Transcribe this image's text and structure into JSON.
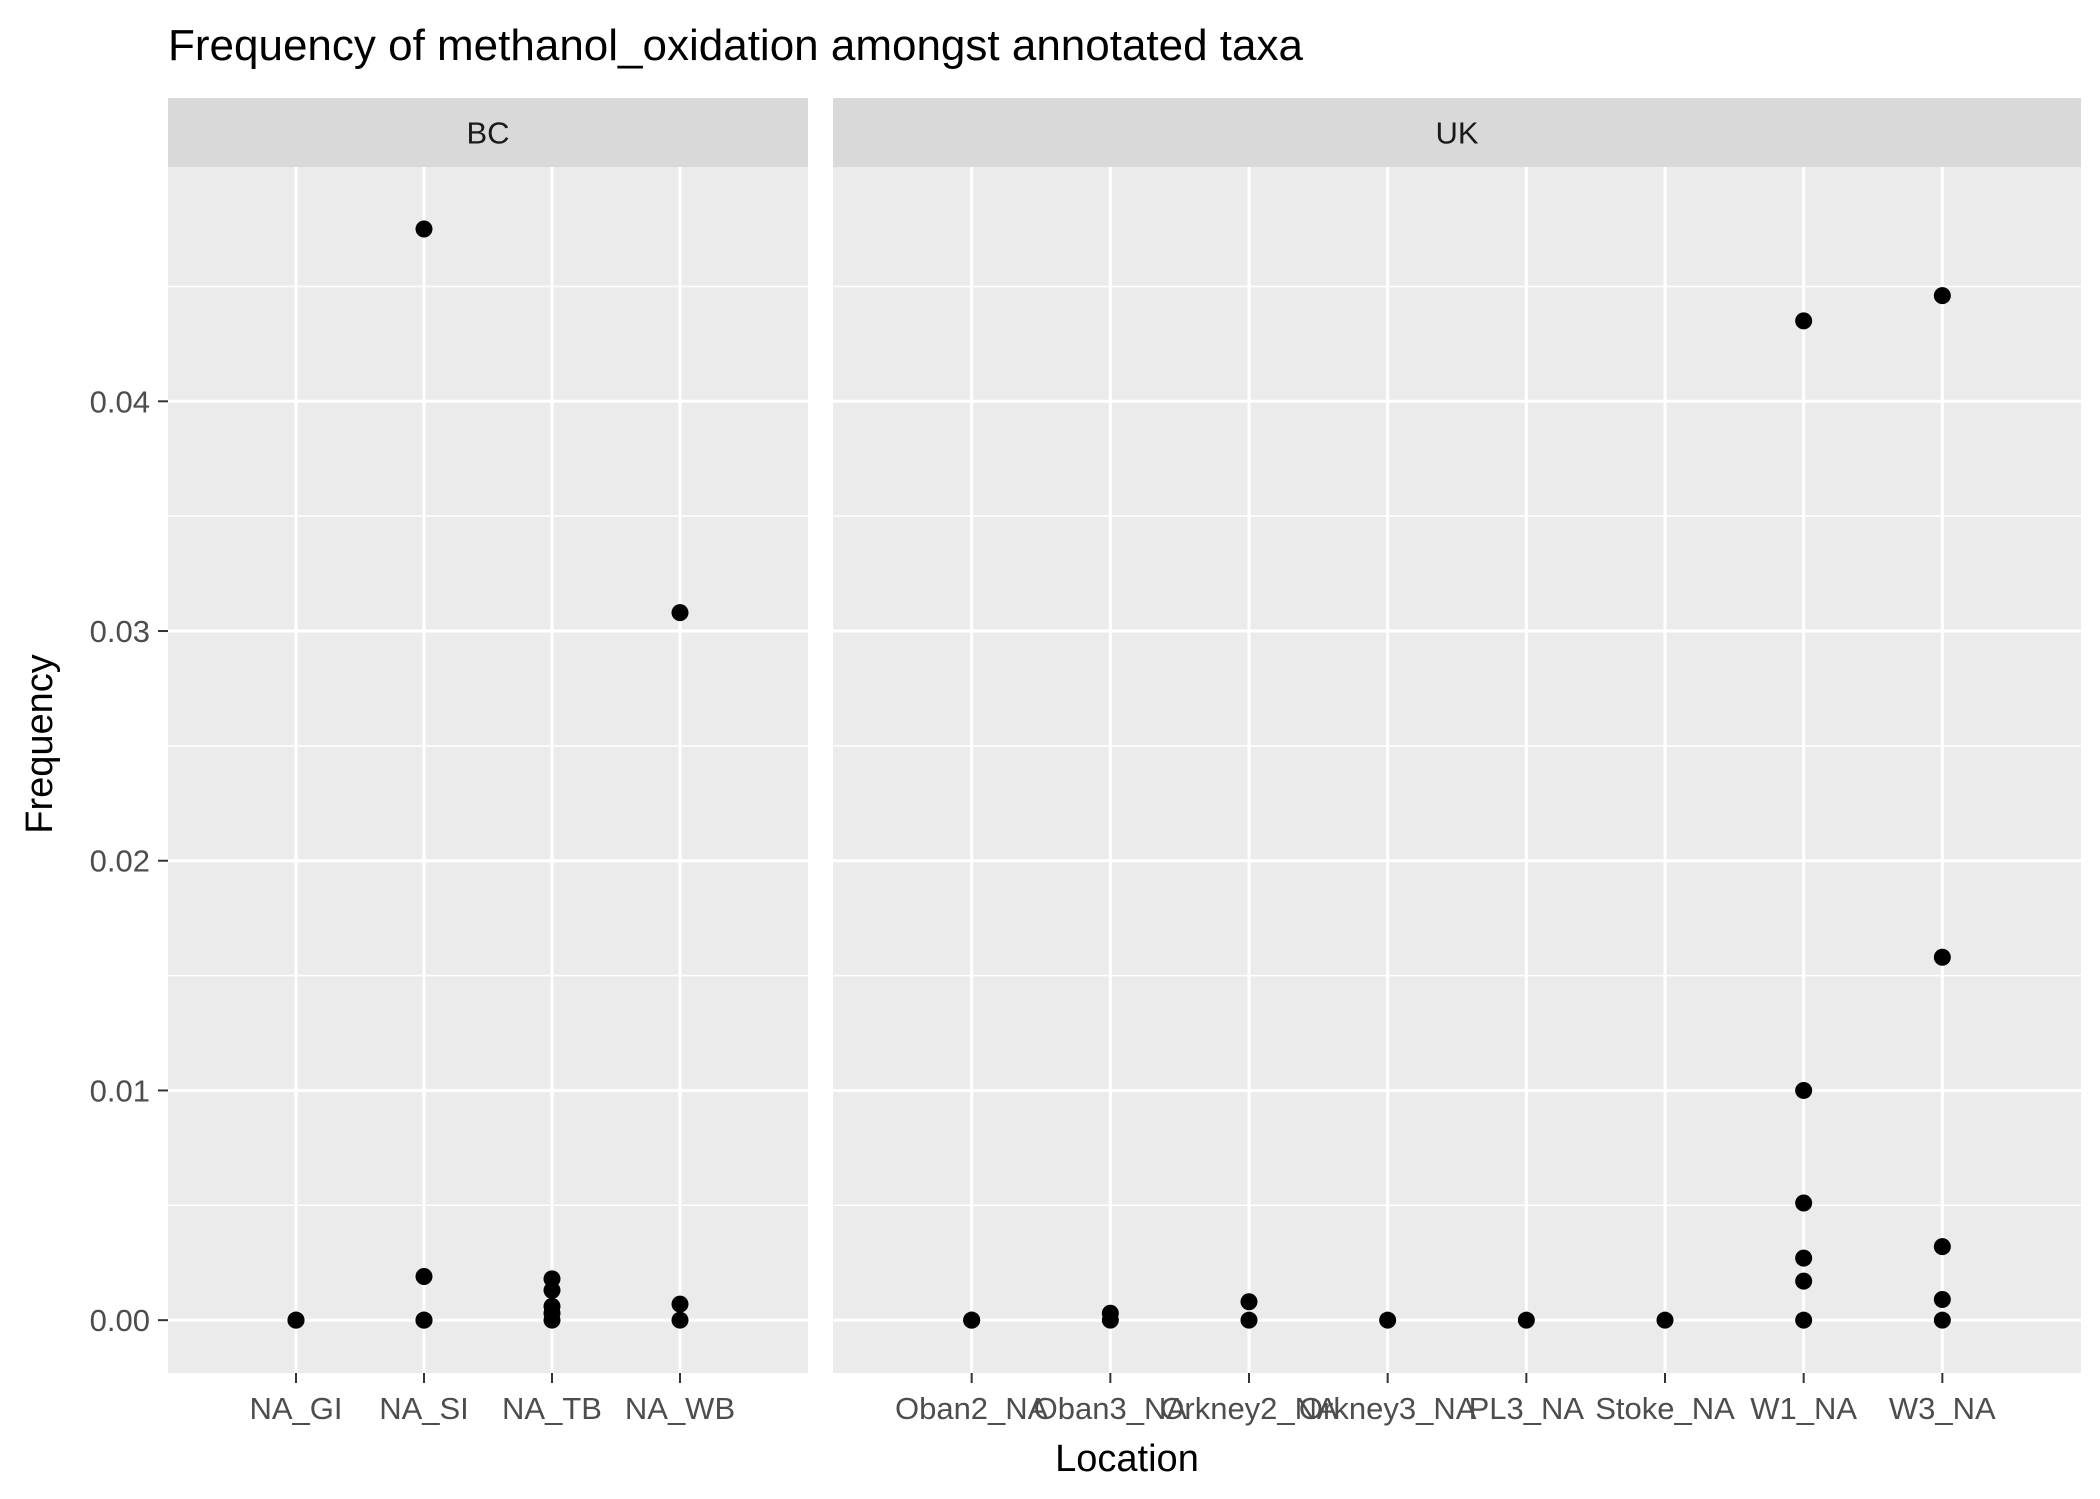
{
  "chart_data": {
    "type": "scatter",
    "title": "Frequency of methanol_oxidation amongst annotated taxa",
    "xlabel": "Location",
    "ylabel": "Frequency",
    "ylim": [
      -0.0023,
      0.0502
    ],
    "yticks": [
      0,
      0.01,
      0.02,
      0.03,
      0.04
    ],
    "ytick_labels": [
      "0.00",
      "0.01",
      "0.02",
      "0.03",
      "0.04"
    ],
    "grid": true,
    "legend": "none",
    "point_color": "#000000",
    "panel_background": "#ebebeb",
    "strip_background": "#d9d9d9",
    "facets": [
      {
        "label": "BC",
        "categories": [
          "NA_GI",
          "NA_SI",
          "NA_TB",
          "NA_WB"
        ],
        "points": [
          {
            "x": "NA_GI",
            "y": 0
          },
          {
            "x": "NA_GI",
            "y": 0
          },
          {
            "x": "NA_SI",
            "y": 0.0475
          },
          {
            "x": "NA_SI",
            "y": 0.0019
          },
          {
            "x": "NA_SI",
            "y": 0
          },
          {
            "x": "NA_SI",
            "y": 0
          },
          {
            "x": "NA_TB",
            "y": 0.0018
          },
          {
            "x": "NA_TB",
            "y": 0.0013
          },
          {
            "x": "NA_TB",
            "y": 0.0006
          },
          {
            "x": "NA_TB",
            "y": 0.0003
          },
          {
            "x": "NA_TB",
            "y": 0
          },
          {
            "x": "NA_WB",
            "y": 0.0308
          },
          {
            "x": "NA_WB",
            "y": 0.0007
          },
          {
            "x": "NA_WB",
            "y": 0
          }
        ]
      },
      {
        "label": "UK",
        "categories": [
          "Oban2_NA",
          "Oban3_NA",
          "Orkney2_NA",
          "Orkney3_NA",
          "PL3_NA",
          "Stoke_NA",
          "W1_NA",
          "W3_NA"
        ],
        "points": [
          {
            "x": "Oban2_NA",
            "y": 0
          },
          {
            "x": "Oban2_NA",
            "y": 0
          },
          {
            "x": "Oban3_NA",
            "y": 0.0003
          },
          {
            "x": "Oban3_NA",
            "y": 0
          },
          {
            "x": "Orkney2_NA",
            "y": 0.0008
          },
          {
            "x": "Orkney2_NA",
            "y": 0
          },
          {
            "x": "Orkney3_NA",
            "y": 0
          },
          {
            "x": "PL3_NA",
            "y": 0
          },
          {
            "x": "Stoke_NA",
            "y": 0
          },
          {
            "x": "W1_NA",
            "y": 0.0435
          },
          {
            "x": "W1_NA",
            "y": 0.01
          },
          {
            "x": "W1_NA",
            "y": 0.0051
          },
          {
            "x": "W1_NA",
            "y": 0.0027
          },
          {
            "x": "W1_NA",
            "y": 0.0017
          },
          {
            "x": "W1_NA",
            "y": 0
          },
          {
            "x": "W3_NA",
            "y": 0.0446
          },
          {
            "x": "W3_NA",
            "y": 0.0158
          },
          {
            "x": "W3_NA",
            "y": 0.0032
          },
          {
            "x": "W3_NA",
            "y": 0.0009
          },
          {
            "x": "W3_NA",
            "y": 0
          }
        ]
      }
    ]
  }
}
